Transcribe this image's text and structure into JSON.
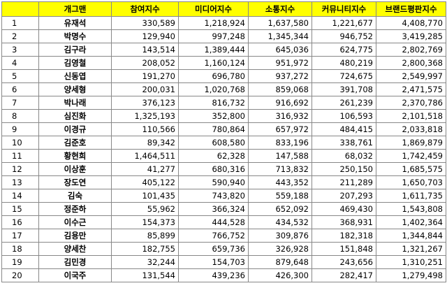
{
  "table": {
    "header": [
      "개그맨",
      "참여지수",
      "미디어지수",
      "소통지수",
      "커뮤니티지수",
      "브랜드평판지수"
    ],
    "rows": [
      [
        1,
        "유재석",
        "330,589",
        "1,218,924",
        "1,637,580",
        "1,221,677",
        "4,408,770"
      ],
      [
        2,
        "박명수",
        "129,940",
        "997,248",
        "1,345,344",
        "946,752",
        "3,419,285"
      ],
      [
        3,
        "김구라",
        "143,514",
        "1,389,444",
        "645,036",
        "624,775",
        "2,802,769"
      ],
      [
        4,
        "김영철",
        "208,052",
        "1,160,124",
        "951,972",
        "480,219",
        "2,800,368"
      ],
      [
        5,
        "신동엽",
        "191,270",
        "696,780",
        "937,272",
        "724,675",
        "2,549,997"
      ],
      [
        6,
        "양세형",
        "200,031",
        "1,020,768",
        "859,068",
        "391,708",
        "2,471,575"
      ],
      [
        7,
        "박나래",
        "376,123",
        "816,732",
        "916,692",
        "261,239",
        "2,370,786"
      ],
      [
        8,
        "심진화",
        "1,325,193",
        "352,800",
        "316,932",
        "106,593",
        "2,101,518"
      ],
      [
        9,
        "이경규",
        "110,566",
        "780,864",
        "657,972",
        "484,415",
        "2,033,818"
      ],
      [
        10,
        "김준호",
        "89,342",
        "608,580",
        "833,196",
        "338,761",
        "1,869,879"
      ],
      [
        11,
        "황현희",
        "1,464,511",
        "62,328",
        "147,588",
        "68,032",
        "1,742,459"
      ],
      [
        12,
        "이상훈",
        "41,277",
        "680,316",
        "713,832",
        "250,150",
        "1,685,575"
      ],
      [
        13,
        "장도연",
        "405,122",
        "590,940",
        "443,352",
        "211,289",
        "1,650,703"
      ],
      [
        14,
        "김숙",
        "101,435",
        "743,820",
        "559,188",
        "207,293",
        "1,611,735"
      ],
      [
        15,
        "정준하",
        "55,962",
        "366,324",
        "652,092",
        "469,430",
        "1,543,808"
      ],
      [
        16,
        "이수근",
        "154,373",
        "444,528",
        "434,532",
        "368,931",
        "1,402,364"
      ],
      [
        17,
        "김용만",
        "85,899",
        "766,752",
        "309,876",
        "182,318",
        "1,344,844"
      ],
      [
        18,
        "양세찬",
        "182,755",
        "659,736",
        "326,928",
        "151,848",
        "1,321,267"
      ],
      [
        19,
        "김민경",
        "32,244",
        "154,703",
        "879,648",
        "243,656",
        "1,310,251"
      ],
      [
        20,
        "이국주",
        "131,544",
        "439,236",
        "426,300",
        "282,417",
        "1,279,498"
      ]
    ]
  }
}
